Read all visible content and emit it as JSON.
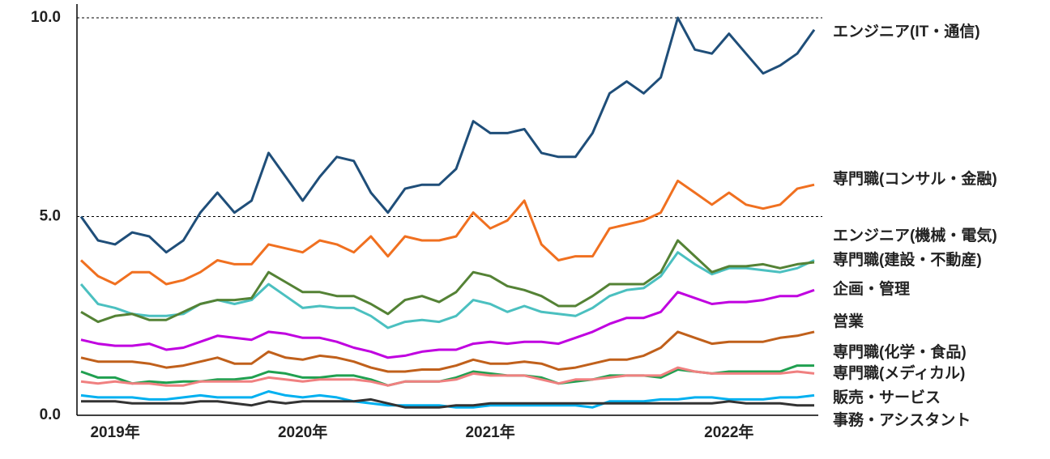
{
  "chart_data": {
    "type": "line",
    "categories": [
      null,
      null,
      "2019年",
      null,
      null,
      null,
      null,
      null,
      null,
      null,
      null,
      null,
      null,
      "2020年",
      null,
      null,
      null,
      null,
      null,
      null,
      null,
      null,
      null,
      null,
      "2021年",
      null,
      null,
      null,
      null,
      null,
      null,
      null,
      null,
      null,
      null,
      null,
      null,
      null,
      "2022年",
      null,
      null,
      null,
      null,
      null
    ],
    "ylim": [
      0,
      10
    ],
    "yticks": [
      {
        "value": 0,
        "label": "0.0"
      },
      {
        "value": 5,
        "label": "5.0"
      },
      {
        "value": 10,
        "label": "10.0"
      }
    ],
    "grid": true,
    "series": [
      {
        "name": "エンジニア(IT・通信)",
        "color": "#1f4e79",
        "values": [
          5.0,
          4.4,
          4.3,
          4.6,
          4.5,
          4.1,
          4.4,
          5.1,
          5.6,
          5.1,
          5.4,
          6.6,
          6.0,
          5.4,
          6.0,
          6.5,
          6.4,
          5.6,
          5.1,
          5.7,
          5.8,
          5.8,
          6.2,
          7.4,
          7.1,
          7.1,
          7.2,
          6.6,
          6.5,
          6.5,
          7.1,
          8.1,
          8.4,
          8.1,
          8.5,
          10.0,
          9.2,
          9.1,
          9.6,
          9.1,
          8.6,
          8.8,
          9.1,
          9.7
        ]
      },
      {
        "name": "専門職(コンサル・金融)",
        "color": "#f07020",
        "values": [
          3.9,
          3.5,
          3.3,
          3.6,
          3.6,
          3.3,
          3.4,
          3.6,
          3.9,
          3.8,
          3.8,
          4.3,
          4.2,
          4.1,
          4.4,
          4.3,
          4.1,
          4.5,
          4.0,
          4.5,
          4.4,
          4.4,
          4.5,
          5.1,
          4.7,
          4.9,
          5.4,
          4.3,
          3.9,
          4.0,
          4.0,
          4.7,
          4.8,
          4.9,
          5.1,
          5.9,
          5.6,
          5.3,
          5.6,
          5.3,
          5.2,
          5.3,
          5.7,
          5.8
        ]
      },
      {
        "name": "エンジニア(機械・電気)",
        "color": "#4bc0c0",
        "values": [
          3.3,
          2.8,
          2.7,
          2.55,
          2.5,
          2.5,
          2.55,
          2.8,
          2.9,
          2.8,
          2.9,
          3.3,
          3.0,
          2.7,
          2.75,
          2.7,
          2.7,
          2.5,
          2.2,
          2.35,
          2.4,
          2.35,
          2.5,
          2.9,
          2.8,
          2.6,
          2.75,
          2.6,
          2.55,
          2.5,
          2.7,
          3.0,
          3.15,
          3.2,
          3.5,
          4.1,
          3.8,
          3.55,
          3.7,
          3.7,
          3.65,
          3.6,
          3.7,
          3.9
        ]
      },
      {
        "name": "専門職(建設・不動産)",
        "color": "#548235",
        "values": [
          2.6,
          2.35,
          2.5,
          2.55,
          2.4,
          2.4,
          2.6,
          2.8,
          2.9,
          2.9,
          2.95,
          3.6,
          3.35,
          3.1,
          3.1,
          3.0,
          3.0,
          2.8,
          2.55,
          2.9,
          3.0,
          2.85,
          3.1,
          3.6,
          3.5,
          3.25,
          3.15,
          3.0,
          2.75,
          2.75,
          3.0,
          3.3,
          3.3,
          3.3,
          3.6,
          4.4,
          4.0,
          3.6,
          3.75,
          3.75,
          3.8,
          3.7,
          3.8,
          3.85
        ]
      },
      {
        "name": "企画・管理",
        "color": "#c000e0",
        "values": [
          1.9,
          1.8,
          1.75,
          1.75,
          1.8,
          1.65,
          1.7,
          1.85,
          2.0,
          1.95,
          1.9,
          2.1,
          2.05,
          1.95,
          1.95,
          1.85,
          1.7,
          1.6,
          1.45,
          1.5,
          1.6,
          1.65,
          1.65,
          1.8,
          1.85,
          1.8,
          1.85,
          1.85,
          1.8,
          1.95,
          2.1,
          2.3,
          2.45,
          2.45,
          2.6,
          3.1,
          2.95,
          2.8,
          2.85,
          2.85,
          2.9,
          3.0,
          3.0,
          3.15
        ]
      },
      {
        "name": "営業",
        "color": "#c0601b",
        "values": [
          1.45,
          1.35,
          1.35,
          1.35,
          1.3,
          1.2,
          1.25,
          1.35,
          1.45,
          1.3,
          1.3,
          1.6,
          1.45,
          1.4,
          1.5,
          1.45,
          1.35,
          1.2,
          1.1,
          1.1,
          1.15,
          1.15,
          1.25,
          1.4,
          1.3,
          1.3,
          1.35,
          1.3,
          1.15,
          1.2,
          1.3,
          1.4,
          1.4,
          1.5,
          1.7,
          2.1,
          1.95,
          1.8,
          1.85,
          1.85,
          1.85,
          1.95,
          2.0,
          2.1
        ]
      },
      {
        "name": "専門職(化学・食品)",
        "color": "#20a050",
        "values": [
          1.1,
          0.95,
          0.95,
          0.8,
          0.85,
          0.82,
          0.85,
          0.85,
          0.9,
          0.9,
          0.95,
          1.1,
          1.05,
          0.95,
          0.95,
          1.0,
          1.0,
          0.9,
          0.75,
          0.85,
          0.85,
          0.85,
          0.95,
          1.1,
          1.05,
          1.0,
          1.0,
          0.95,
          0.8,
          0.85,
          0.9,
          1.0,
          1.0,
          1.0,
          0.95,
          1.15,
          1.1,
          1.05,
          1.1,
          1.1,
          1.1,
          1.1,
          1.25,
          1.25
        ]
      },
      {
        "name": "専門職(メディカル)",
        "color": "#f08080",
        "values": [
          0.85,
          0.8,
          0.85,
          0.8,
          0.8,
          0.75,
          0.75,
          0.85,
          0.85,
          0.85,
          0.85,
          0.95,
          0.9,
          0.85,
          0.9,
          0.9,
          0.9,
          0.85,
          0.75,
          0.85,
          0.85,
          0.85,
          0.9,
          1.05,
          1.0,
          1.0,
          1.0,
          0.9,
          0.8,
          0.9,
          0.9,
          0.95,
          1.0,
          1.0,
          1.0,
          1.2,
          1.1,
          1.05,
          1.05,
          1.05,
          1.05,
          1.05,
          1.1,
          1.05
        ]
      },
      {
        "name": "販売・サービス",
        "color": "#00b0f0",
        "values": [
          0.5,
          0.45,
          0.45,
          0.45,
          0.4,
          0.4,
          0.45,
          0.5,
          0.45,
          0.45,
          0.45,
          0.6,
          0.5,
          0.45,
          0.5,
          0.45,
          0.35,
          0.3,
          0.25,
          0.25,
          0.25,
          0.25,
          0.2,
          0.2,
          0.25,
          0.25,
          0.25,
          0.25,
          0.25,
          0.25,
          0.2,
          0.35,
          0.35,
          0.35,
          0.4,
          0.4,
          0.45,
          0.45,
          0.4,
          0.4,
          0.4,
          0.45,
          0.45,
          0.5
        ]
      },
      {
        "name": "事務・アシスタント",
        "color": "#333333",
        "values": [
          0.35,
          0.35,
          0.35,
          0.3,
          0.3,
          0.3,
          0.3,
          0.35,
          0.35,
          0.3,
          0.25,
          0.35,
          0.3,
          0.35,
          0.35,
          0.35,
          0.35,
          0.4,
          0.3,
          0.2,
          0.2,
          0.2,
          0.25,
          0.25,
          0.3,
          0.3,
          0.3,
          0.3,
          0.3,
          0.3,
          0.3,
          0.3,
          0.3,
          0.3,
          0.3,
          0.3,
          0.3,
          0.3,
          0.35,
          0.3,
          0.3,
          0.3,
          0.25,
          0.25
        ]
      }
    ]
  }
}
